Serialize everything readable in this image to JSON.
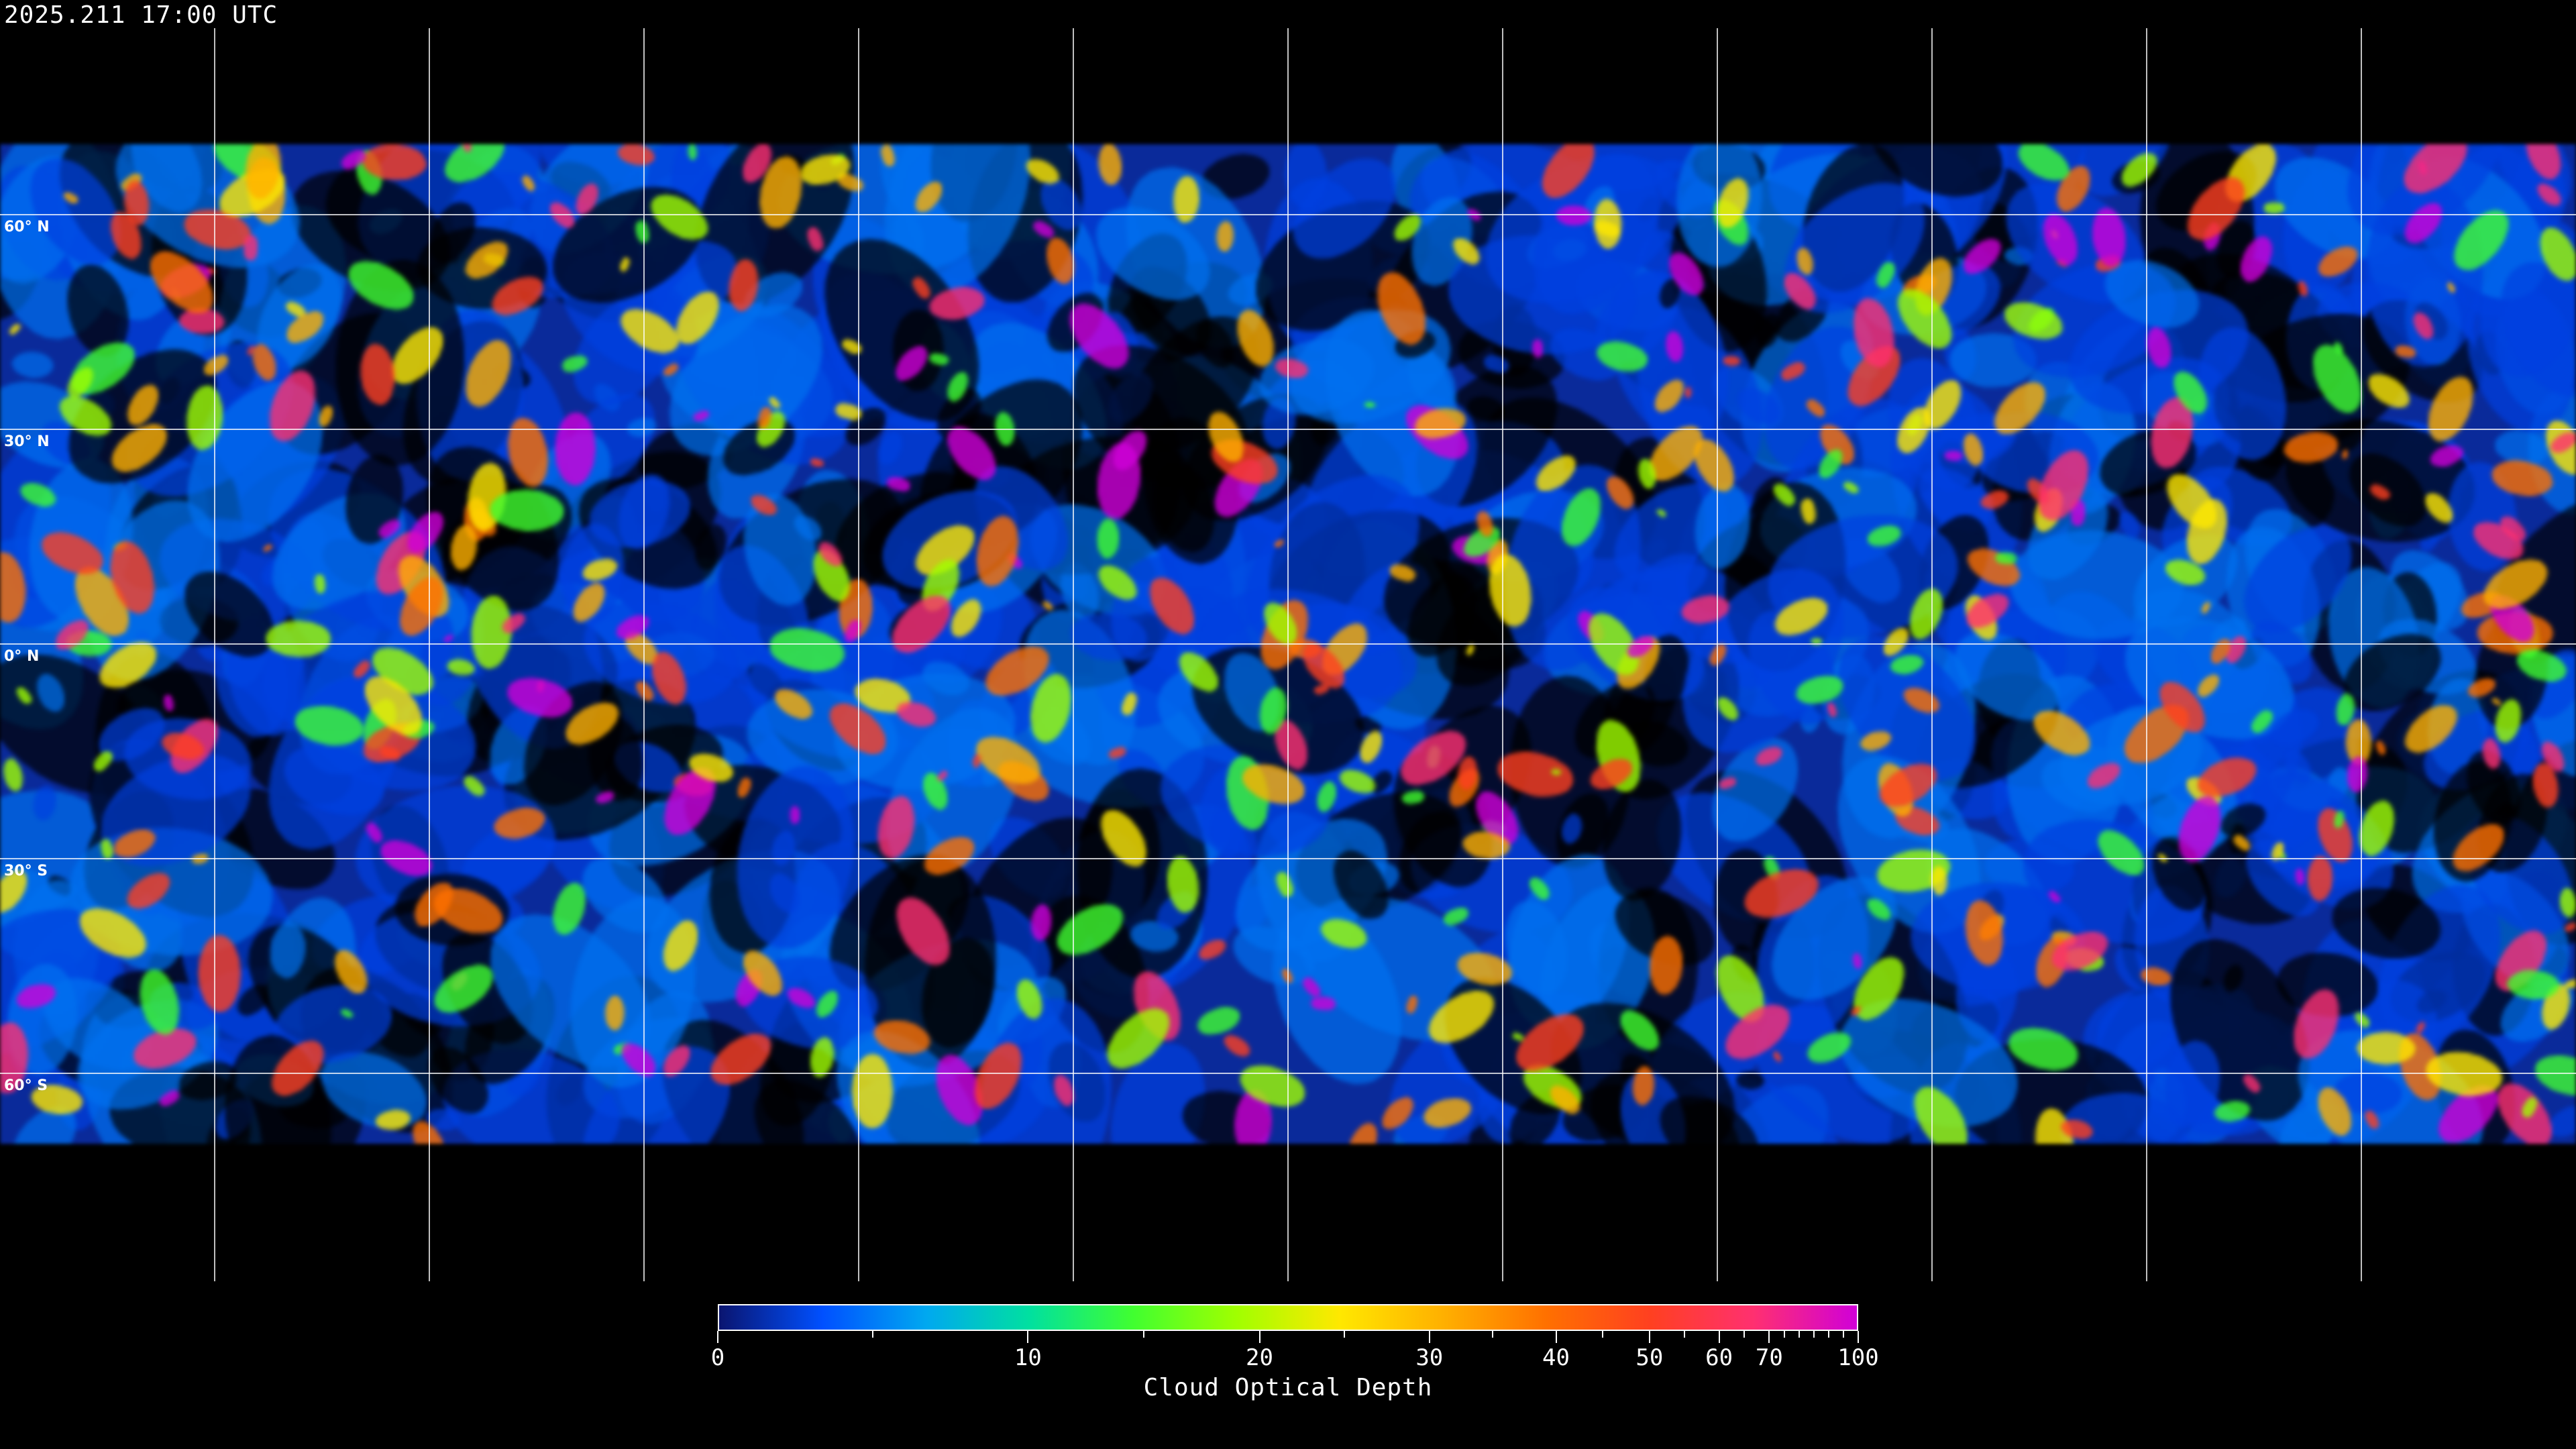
{
  "header": {
    "timestamp": "2025.211 17:00 UTC"
  },
  "map": {
    "projection": "equirectangular",
    "longitude_grid_step_deg": 30,
    "latitude_labels": [
      {
        "lat": 60,
        "text": "60° N"
      },
      {
        "lat": 30,
        "text": "30° N"
      },
      {
        "lat": 0,
        "text": "0° N"
      },
      {
        "lat": -30,
        "text": "30° S"
      },
      {
        "lat": -60,
        "text": "60° S"
      }
    ],
    "gridline_color": "#ffffff",
    "coastline_color": "#ffffff",
    "no_data_color": "#000000"
  },
  "colorbar": {
    "title": "Cloud Optical Depth",
    "range": [
      0,
      100
    ],
    "major_ticks": [
      "0",
      "10",
      "20",
      "30",
      "40",
      "50",
      "60",
      "70",
      "100"
    ],
    "colors": [
      "#0a1570",
      "#0050ff",
      "#00a8f0",
      "#00e0a0",
      "#40ff30",
      "#a0ff00",
      "#ffe800",
      "#ffb000",
      "#ff7000",
      "#ff4020",
      "#ff3070",
      "#d000d8"
    ]
  }
}
